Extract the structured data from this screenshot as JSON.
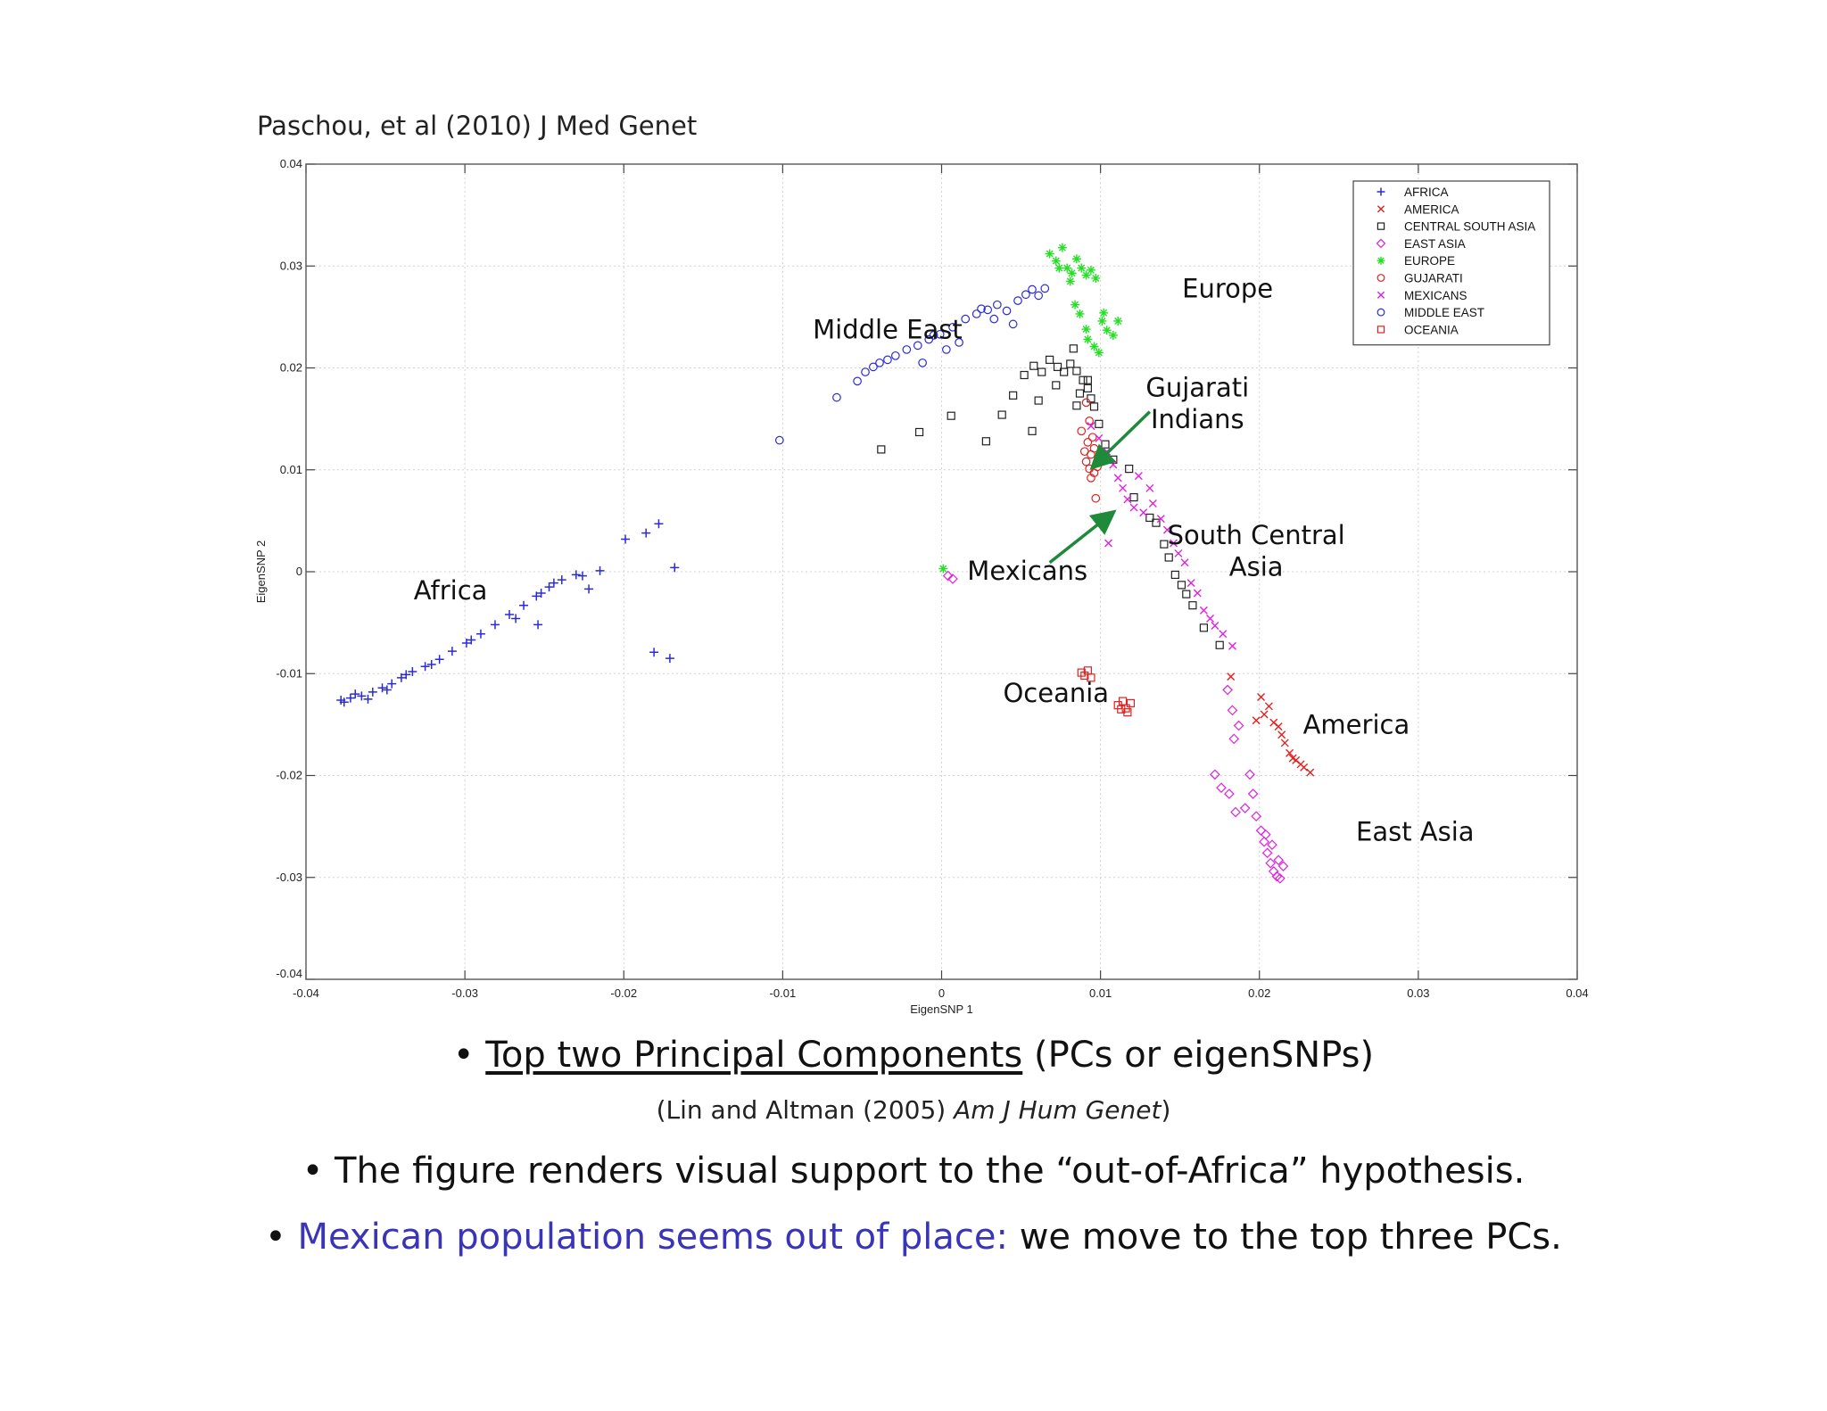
{
  "citation": "Paschou, et al (2010) J Med Genet",
  "chart_data": {
    "type": "scatter",
    "title": "",
    "xlabel": "EigenSNP 1",
    "ylabel": "EigenSNP 2",
    "xlim": [
      -0.04,
      0.04
    ],
    "ylim": [
      -0.04,
      0.04
    ],
    "grid": true,
    "xticks": [
      "-0.04",
      "-0.03",
      "-0.02",
      "-0.01",
      "0",
      "0.01",
      "0.02",
      "0.03",
      "0.04"
    ],
    "yticks": [
      "0.04",
      "0.03",
      "0.02",
      "0.01",
      "0",
      "-0.01",
      "-0.02",
      "-0.03",
      "-0.04"
    ],
    "legend_position": "top-right",
    "series": [
      {
        "name": "AFRICA",
        "color": "#2b2bd6",
        "marker": "plus",
        "points": [
          [
            -0.0378,
            -0.0126
          ],
          [
            -0.0372,
            -0.0124
          ],
          [
            -0.0365,
            -0.0122
          ],
          [
            -0.0358,
            -0.0118
          ],
          [
            -0.0352,
            -0.0114
          ],
          [
            -0.0346,
            -0.011
          ],
          [
            -0.034,
            -0.0104
          ],
          [
            -0.0333,
            -0.0098
          ],
          [
            -0.0325,
            -0.0093
          ],
          [
            -0.0316,
            -0.0086
          ],
          [
            -0.0308,
            -0.0078
          ],
          [
            -0.0299,
            -0.007
          ],
          [
            -0.029,
            -0.0061
          ],
          [
            -0.0281,
            -0.0052
          ],
          [
            -0.0272,
            -0.0042
          ],
          [
            -0.0263,
            -0.0033
          ],
          [
            -0.0255,
            -0.0024
          ],
          [
            -0.0247,
            -0.0015
          ],
          [
            -0.0239,
            -0.0008
          ],
          [
            -0.023,
            -0.0003
          ],
          [
            -0.0215,
            0.0001
          ],
          [
            -0.0222,
            -0.0017
          ],
          [
            -0.0199,
            0.0032
          ],
          [
            -0.0186,
            0.0038
          ],
          [
            -0.0178,
            0.0047
          ],
          [
            -0.0168,
            0.0004
          ],
          [
            -0.0181,
            -0.0079
          ],
          [
            -0.0171,
            -0.0085
          ],
          [
            -0.0254,
            -0.0052
          ],
          [
            -0.0376,
            -0.0128
          ],
          [
            -0.0369,
            -0.012
          ],
          [
            -0.0349,
            -0.0116
          ],
          [
            -0.0337,
            -0.0101
          ],
          [
            -0.0296,
            -0.0067
          ],
          [
            -0.0268,
            -0.0046
          ],
          [
            -0.0252,
            -0.0021
          ],
          [
            -0.0244,
            -0.0011
          ],
          [
            -0.0226,
            -0.0004
          ],
          [
            -0.0361,
            -0.0125
          ],
          [
            -0.0321,
            -0.0091
          ]
        ]
      },
      {
        "name": "AMERICA",
        "color": "#e02020",
        "marker": "x",
        "points": [
          [
            0.0182,
            -0.0103
          ],
          [
            0.0201,
            -0.0123
          ],
          [
            0.0206,
            -0.0132
          ],
          [
            0.0212,
            -0.0152
          ],
          [
            0.0216,
            -0.0168
          ],
          [
            0.0219,
            -0.0178
          ],
          [
            0.0223,
            -0.0185
          ],
          [
            0.0228,
            -0.0192
          ],
          [
            0.0232,
            -0.0197
          ],
          [
            0.0214,
            -0.016
          ],
          [
            0.0209,
            -0.0148
          ],
          [
            0.0203,
            -0.014
          ],
          [
            0.0226,
            -0.0189
          ],
          [
            0.0221,
            -0.0183
          ],
          [
            0.0198,
            -0.0146
          ]
        ]
      },
      {
        "name": "CENTRAL SOUTH ASIA",
        "color": "#222222",
        "marker": "square",
        "points": [
          [
            -0.0038,
            0.012
          ],
          [
            -0.0014,
            0.0137
          ],
          [
            0.0006,
            0.0153
          ],
          [
            0.0028,
            0.0128
          ],
          [
            0.0038,
            0.0154
          ],
          [
            0.0045,
            0.0173
          ],
          [
            0.0052,
            0.0193
          ],
          [
            0.0058,
            0.0202
          ],
          [
            0.0063,
            0.0196
          ],
          [
            0.0068,
            0.0208
          ],
          [
            0.0073,
            0.0201
          ],
          [
            0.0077,
            0.0196
          ],
          [
            0.0081,
            0.0204
          ],
          [
            0.0085,
            0.0197
          ],
          [
            0.0089,
            0.0188
          ],
          [
            0.0092,
            0.018
          ],
          [
            0.0094,
            0.017
          ],
          [
            0.0085,
            0.0163
          ],
          [
            0.0096,
            0.0162
          ],
          [
            0.0099,
            0.0145
          ],
          [
            0.0103,
            0.0125
          ],
          [
            0.0108,
            0.011
          ],
          [
            0.0118,
            0.0101
          ],
          [
            0.0121,
            0.0073
          ],
          [
            0.0131,
            0.0053
          ],
          [
            0.0135,
            0.0048
          ],
          [
            0.014,
            0.0027
          ],
          [
            0.0143,
            0.0014
          ],
          [
            0.0147,
            -0.0003
          ],
          [
            0.0151,
            -0.0013
          ],
          [
            0.0154,
            -0.0022
          ],
          [
            0.0158,
            -0.0033
          ],
          [
            0.0165,
            -0.0055
          ],
          [
            0.0175,
            -0.0072
          ],
          [
            0.0072,
            0.0183
          ],
          [
            0.0057,
            0.0138
          ],
          [
            0.0061,
            0.0168
          ],
          [
            0.0083,
            0.0219
          ],
          [
            0.0092,
            0.0188
          ],
          [
            0.0087,
            0.0175
          ]
        ]
      },
      {
        "name": "EAST ASIA",
        "color": "#e020e0",
        "marker": "diamond",
        "points": [
          [
            0.0004,
            -0.0004
          ],
          [
            0.0007,
            -0.0007
          ],
          [
            0.018,
            -0.0116
          ],
          [
            0.0183,
            -0.0136
          ],
          [
            0.0187,
            -0.0151
          ],
          [
            0.0184,
            -0.0164
          ],
          [
            0.0172,
            -0.0199
          ],
          [
            0.0176,
            -0.0212
          ],
          [
            0.0181,
            -0.0218
          ],
          [
            0.0185,
            -0.0236
          ],
          [
            0.0191,
            -0.0232
          ],
          [
            0.0194,
            -0.0199
          ],
          [
            0.0196,
            -0.0218
          ],
          [
            0.0201,
            -0.0254
          ],
          [
            0.0203,
            -0.0265
          ],
          [
            0.0205,
            -0.0276
          ],
          [
            0.0207,
            -0.0286
          ],
          [
            0.0209,
            -0.0294
          ],
          [
            0.0211,
            -0.0299
          ],
          [
            0.0213,
            -0.0301
          ],
          [
            0.0215,
            -0.0289
          ],
          [
            0.0208,
            -0.0268
          ],
          [
            0.0204,
            -0.0258
          ],
          [
            0.0198,
            -0.024
          ],
          [
            0.0212,
            -0.0283
          ]
        ]
      },
      {
        "name": "EUROPE",
        "color": "#22e022",
        "marker": "star",
        "points": [
          [
            0.0001,
            0.0003
          ],
          [
            0.0068,
            0.0312
          ],
          [
            0.0072,
            0.0305
          ],
          [
            0.0076,
            0.0318
          ],
          [
            0.0079,
            0.0298
          ],
          [
            0.0082,
            0.0293
          ],
          [
            0.0085,
            0.0307
          ],
          [
            0.0088,
            0.0298
          ],
          [
            0.0091,
            0.0291
          ],
          [
            0.0094,
            0.0296
          ],
          [
            0.0097,
            0.0288
          ],
          [
            0.0084,
            0.0262
          ],
          [
            0.0087,
            0.0253
          ],
          [
            0.0092,
            0.0228
          ],
          [
            0.0096,
            0.0221
          ],
          [
            0.0101,
            0.0246
          ],
          [
            0.0104,
            0.0237
          ],
          [
            0.0108,
            0.0232
          ],
          [
            0.0102,
            0.0254
          ],
          [
            0.0081,
            0.0285
          ],
          [
            0.0074,
            0.0298
          ],
          [
            0.0091,
            0.0238
          ],
          [
            0.0099,
            0.0215
          ],
          [
            0.0111,
            0.0246
          ]
        ]
      },
      {
        "name": "GUJARATI",
        "color": "#e02020",
        "marker": "circle",
        "points": [
          [
            0.0091,
            0.0166
          ],
          [
            0.0093,
            0.0148
          ],
          [
            0.0095,
            0.0132
          ],
          [
            0.0096,
            0.0121
          ],
          [
            0.0094,
            0.0115
          ],
          [
            0.0091,
            0.0108
          ],
          [
            0.0093,
            0.0101
          ],
          [
            0.0096,
            0.0097
          ],
          [
            0.0098,
            0.0103
          ],
          [
            0.0097,
            0.0072
          ],
          [
            0.0088,
            0.0138
          ],
          [
            0.0092,
            0.0127
          ],
          [
            0.0099,
            0.0112
          ],
          [
            0.0094,
            0.0092
          ],
          [
            0.009,
            0.0118
          ]
        ]
      },
      {
        "name": "MEXICANS",
        "color": "#e020e0",
        "marker": "x",
        "points": [
          [
            0.0094,
            0.0143
          ],
          [
            0.0099,
            0.0131
          ],
          [
            0.0104,
            0.0118
          ],
          [
            0.0108,
            0.0105
          ],
          [
            0.0111,
            0.0092
          ],
          [
            0.0114,
            0.0082
          ],
          [
            0.0117,
            0.0071
          ],
          [
            0.0121,
            0.0063
          ],
          [
            0.0127,
            0.0058
          ],
          [
            0.0133,
            0.0067
          ],
          [
            0.0138,
            0.0052
          ],
          [
            0.0142,
            0.0041
          ],
          [
            0.0146,
            0.0028
          ],
          [
            0.0149,
            0.0018
          ],
          [
            0.0153,
            0.0009
          ],
          [
            0.0157,
            -0.0011
          ],
          [
            0.0161,
            -0.0021
          ],
          [
            0.0165,
            -0.0038
          ],
          [
            0.0169,
            -0.0046
          ],
          [
            0.0172,
            -0.0053
          ],
          [
            0.0177,
            -0.0061
          ],
          [
            0.0183,
            -0.0073
          ],
          [
            0.0124,
            0.0094
          ],
          [
            0.0131,
            0.0082
          ],
          [
            0.0105,
            0.0028
          ]
        ]
      },
      {
        "name": "MIDDLE EAST",
        "color": "#2b2bd6",
        "marker": "circle",
        "points": [
          [
            -0.0102,
            0.0129
          ],
          [
            -0.0066,
            0.0171
          ],
          [
            -0.0053,
            0.0187
          ],
          [
            -0.0048,
            0.0196
          ],
          [
            -0.0043,
            0.0201
          ],
          [
            -0.0039,
            0.0205
          ],
          [
            -0.0034,
            0.0208
          ],
          [
            -0.0029,
            0.0212
          ],
          [
            -0.0022,
            0.0218
          ],
          [
            -0.0015,
            0.0222
          ],
          [
            -0.0008,
            0.0228
          ],
          [
            -0.0001,
            0.0233
          ],
          [
            0.0007,
            0.024
          ],
          [
            0.0015,
            0.0248
          ],
          [
            0.0022,
            0.0253
          ],
          [
            0.0029,
            0.0257
          ],
          [
            0.0035,
            0.0262
          ],
          [
            0.0041,
            0.0256
          ],
          [
            0.0048,
            0.0266
          ],
          [
            0.0053,
            0.0272
          ],
          [
            0.0057,
            0.0277
          ],
          [
            0.0061,
            0.0271
          ],
          [
            0.0065,
            0.0278
          ],
          [
            0.0033,
            0.0248
          ],
          [
            0.0025,
            0.0258
          ],
          [
            -0.0012,
            0.0205
          ],
          [
            0.0003,
            0.0218
          ],
          [
            0.0011,
            0.0225
          ],
          [
            -0.0005,
            0.0232
          ],
          [
            0.0045,
            0.0243
          ]
        ]
      },
      {
        "name": "OCEANIA",
        "color": "#e02020",
        "marker": "square",
        "points": [
          [
            0.0088,
            -0.0099
          ],
          [
            0.009,
            -0.0102
          ],
          [
            0.0092,
            -0.0097
          ],
          [
            0.0094,
            -0.0104
          ],
          [
            0.0111,
            -0.0131
          ],
          [
            0.0114,
            -0.0127
          ],
          [
            0.0116,
            -0.0134
          ],
          [
            0.0119,
            -0.0129
          ],
          [
            0.0117,
            -0.0138
          ],
          [
            0.0113,
            -0.0135
          ]
        ]
      }
    ],
    "annotations": [
      {
        "text": "Middle East",
        "x": -0.0034,
        "y": 0.0229
      },
      {
        "text": "Europe",
        "x": 0.018,
        "y": 0.0269
      },
      {
        "text": "Gujarati",
        "x": 0.0161,
        "y": 0.0172
      },
      {
        "text": "Indians",
        "x": 0.0161,
        "y": 0.0141
      },
      {
        "text": "Africa",
        "x": -0.0309,
        "y": -0.0027
      },
      {
        "text": "Mexicans",
        "x": 0.0054,
        "y": -0.0008
      },
      {
        "text": "South Central",
        "x": 0.0198,
        "y": 0.0027
      },
      {
        "text": "Asia",
        "x": 0.0198,
        "y": -0.0004
      },
      {
        "text": "Oceania",
        "x": 0.0072,
        "y": -0.0128
      },
      {
        "text": "America",
        "x": 0.0261,
        "y": -0.0159
      },
      {
        "text": "East Asia",
        "x": 0.0298,
        "y": -0.0264
      }
    ],
    "arrows": [
      {
        "from": [
          0.0131,
          0.0157
        ],
        "to": [
          0.0096,
          0.0104
        ],
        "color": "#1e8a3a"
      },
      {
        "from": [
          0.0068,
          0.0009
        ],
        "to": [
          0.0107,
          0.0057
        ],
        "color": "#1e8a3a"
      }
    ]
  },
  "bullet1": {
    "prefix": "• ",
    "underlined": "Top two Principal Components",
    "rest": " (PCs or eigenSNPs)"
  },
  "reference": {
    "open": "(Lin and Altman (2005) ",
    "journal": "Am J Hum Genet",
    "close": ")"
  },
  "bullet2": "• The figure renders visual support to the “out-of-Africa” hypothesis.",
  "bullet3": {
    "prefix": "• ",
    "highlight": "Mexican population seems out of place:",
    "rest": " we move to the top three PCs."
  },
  "colors": {
    "accent_blue": "#3a35b8",
    "arrow_green": "#1e8a3a"
  }
}
